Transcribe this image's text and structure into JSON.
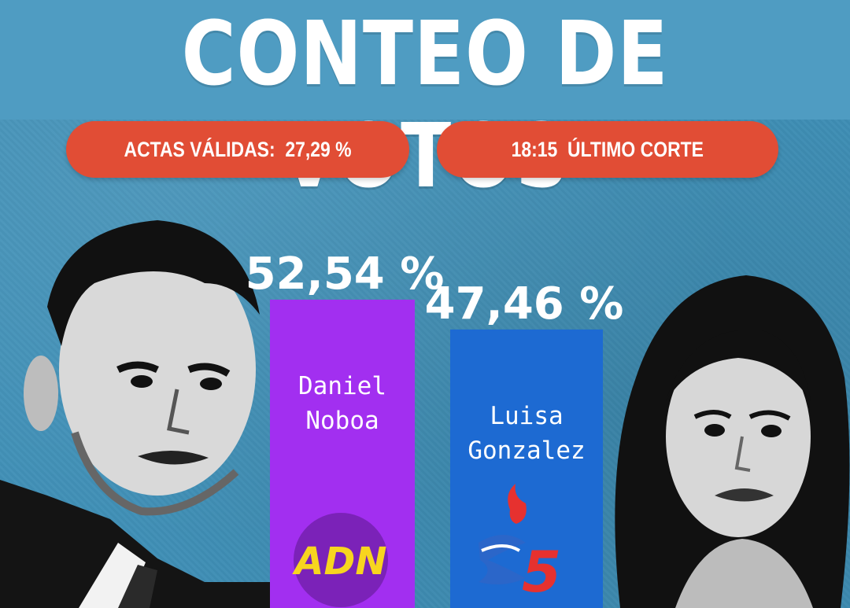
{
  "header": {
    "title": "CONTEO DE VOTOS",
    "actas": "ACTAS VÁLIDAS:  27,29 %",
    "corte": "18:15  ÚLTIMO CORTE"
  },
  "colors": {
    "background": "#3f8fb6",
    "pill": "#e14d35",
    "noboa_bar": "#a22ff0",
    "gonzalez_bar": "#1d6ad2",
    "adn_logo_bg": "#7b22b8",
    "adn_logo_text": "#f7d51f",
    "rc5_flame": "#e6312f",
    "rc5_blue": "#2c66c8"
  },
  "chart_data": {
    "type": "bar",
    "categories": [
      "Daniel Noboa",
      "Luisa Gonzalez"
    ],
    "values": [
      52.54,
      47.46
    ],
    "value_labels": [
      "52,54 %",
      "47,46  %"
    ],
    "name_lines": [
      [
        "Daniel",
        "Noboa"
      ],
      [
        "Luisa",
        "Gonzalez"
      ]
    ],
    "logos": [
      "adn-logo",
      "revolucion-ciudadana-5-logo"
    ],
    "ylim": [
      0,
      100
    ],
    "ylabel": "",
    "xlabel": "",
    "grid": false,
    "legend": "none"
  },
  "logos": {
    "adn_text": "ADN",
    "rc5_number": "5"
  }
}
